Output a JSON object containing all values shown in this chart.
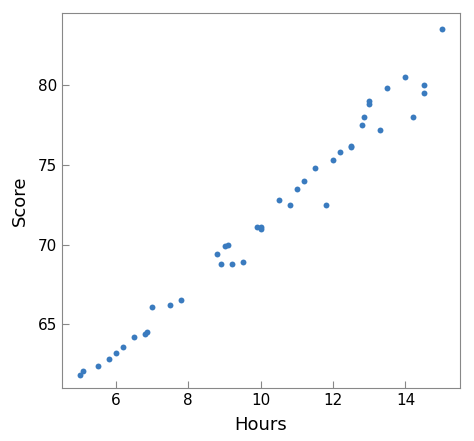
{
  "x": [
    5.0,
    5.1,
    5.5,
    5.8,
    6.0,
    6.2,
    6.5,
    6.8,
    6.85,
    7.0,
    7.5,
    7.8,
    8.8,
    8.9,
    9.0,
    9.1,
    9.2,
    9.5,
    9.9,
    10.0,
    10.0,
    10.5,
    10.8,
    11.0,
    11.2,
    11.5,
    11.8,
    12.0,
    12.2,
    12.5,
    12.5,
    12.8,
    12.85,
    13.0,
    13.0,
    13.3,
    13.5,
    14.0,
    14.2,
    14.5,
    14.5,
    15.0
  ],
  "y": [
    61.8,
    62.1,
    62.4,
    62.8,
    63.2,
    63.6,
    64.2,
    64.4,
    64.5,
    66.1,
    66.2,
    66.5,
    69.4,
    68.8,
    69.9,
    70.0,
    68.8,
    68.9,
    71.1,
    71.1,
    71.0,
    72.8,
    72.5,
    73.5,
    74.0,
    74.8,
    72.5,
    75.3,
    75.8,
    76.1,
    76.2,
    77.5,
    78.0,
    78.8,
    79.0,
    77.2,
    79.8,
    80.5,
    78.0,
    79.5,
    80.0,
    83.5
  ],
  "dot_color": "#3a7bbf",
  "dot_size": 18,
  "xlabel": "Hours",
  "ylabel": "Score",
  "xlim": [
    4.5,
    15.5
  ],
  "ylim": [
    61.0,
    84.5
  ],
  "xticks": [
    6,
    8,
    10,
    12,
    14
  ],
  "yticks": [
    65,
    70,
    75,
    80
  ],
  "bg_color": "#ffffff",
  "spine_color": "#888888",
  "tick_fontsize": 11,
  "label_fontsize": 13
}
